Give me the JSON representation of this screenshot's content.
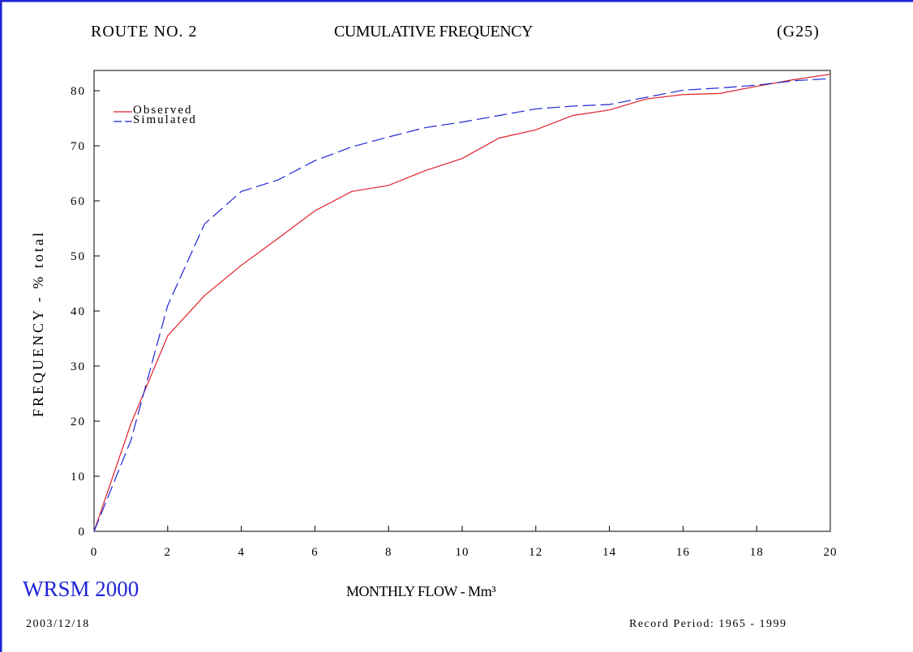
{
  "header": {
    "route": "ROUTE NO. 2",
    "title": "CUMULATIVE FREQUENCY",
    "code": "(G25)"
  },
  "footer": {
    "brand": "WRSM 2000",
    "date": "2003/12/18",
    "record_period": "Record Period: 1965 - 1999"
  },
  "colors": {
    "frame": "#1f24d6",
    "observed": "#e0202a",
    "simulated": "#1f24d6"
  },
  "chart_data": {
    "type": "line",
    "title": "CUMULATIVE FREQUENCY",
    "xlabel": "MONTHLY FLOW - Mm³",
    "ylabel": "FREQUENCY - % total",
    "xlim": [
      0,
      20
    ],
    "ylim": [
      0,
      80
    ],
    "x_ticks": [
      "0",
      "2",
      "4",
      "6",
      "8",
      "10",
      "12",
      "14",
      "16",
      "18",
      "20"
    ],
    "y_ticks": [
      "0",
      "10",
      "20",
      "30",
      "40",
      "50",
      "60",
      "70",
      "80"
    ],
    "grid": false,
    "legend_position": "top-left",
    "x": [
      0,
      1,
      2,
      3,
      4,
      5,
      6,
      7,
      8,
      9,
      10,
      11,
      12,
      13,
      14,
      15,
      16,
      17,
      18,
      19,
      20
    ],
    "series": [
      {
        "name": "Observed",
        "style": "solid",
        "values": [
          0,
          19.5,
          35.5,
          42.8,
          48.3,
          53.2,
          58.2,
          61.7,
          62.8,
          65.5,
          67.7,
          71.4,
          72.9,
          75.5,
          76.5,
          78.5,
          79.3,
          79.5,
          80.8,
          82.0,
          83.0
        ]
      },
      {
        "name": "Simulated",
        "style": "dashed",
        "values": [
          0,
          16.5,
          41.0,
          55.8,
          61.7,
          63.8,
          67.3,
          69.8,
          71.6,
          73.3,
          74.3,
          75.5,
          76.7,
          77.2,
          77.5,
          78.8,
          80.1,
          80.5,
          81.0,
          81.8,
          82.2
        ]
      }
    ]
  }
}
